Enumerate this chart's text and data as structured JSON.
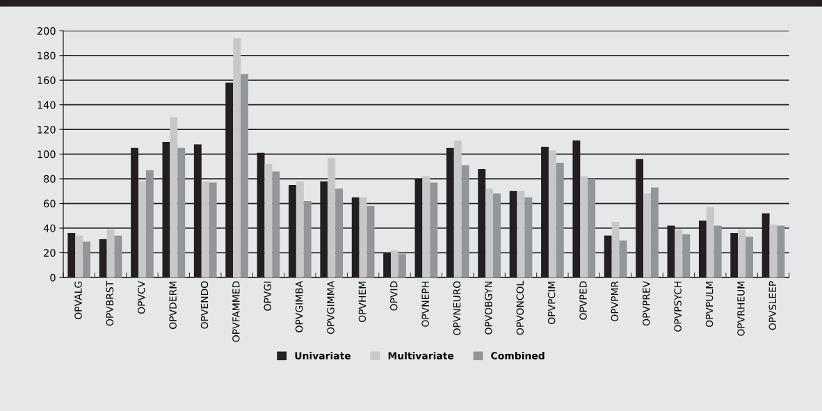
{
  "chart_data": {
    "type": "bar",
    "categories": [
      "OPVALG",
      "OPVBRST",
      "OPVCV",
      "OPVDERM",
      "OPVENDO",
      "OPVFAMMED",
      "OPVGI",
      "OPVGIMBA",
      "OPVGIMMA",
      "OPVHEM",
      "OPVID",
      "OPVNEPH",
      "OPVNEURO",
      "OPVOBGYN",
      "OPVONCOL",
      "OPVPCIM",
      "OPVPED",
      "OPVPMR",
      "OPVPREV",
      "OPVPSYCH",
      "OPVPULM",
      "OPVRHEUM",
      "OPVSLEEP"
    ],
    "series": [
      {
        "name": "Univariate",
        "color": "#231f20",
        "values": [
          36,
          31,
          105,
          110,
          108,
          158,
          101,
          75,
          78,
          65,
          20,
          80,
          105,
          88,
          70,
          106,
          111,
          34,
          96,
          42,
          46,
          36,
          52
        ]
      },
      {
        "name": "Multivariate",
        "color": "#c7c8ca",
        "values": [
          34,
          39,
          78,
          130,
          78,
          194,
          92,
          78,
          97,
          65,
          22,
          82,
          111,
          72,
          70,
          103,
          82,
          45,
          68,
          39,
          57,
          39,
          43
        ]
      },
      {
        "name": "Combined",
        "color": "#939598",
        "values": [
          29,
          34,
          87,
          105,
          77,
          165,
          86,
          62,
          72,
          58,
          19,
          77,
          91,
          68,
          65,
          93,
          80,
          30,
          73,
          35,
          42,
          33,
          42
        ]
      }
    ],
    "ylim": [
      0,
      200
    ],
    "yticks": [
      0,
      20,
      40,
      60,
      80,
      100,
      120,
      140,
      160,
      180,
      200
    ],
    "grid": "y",
    "legend": "bottom"
  }
}
